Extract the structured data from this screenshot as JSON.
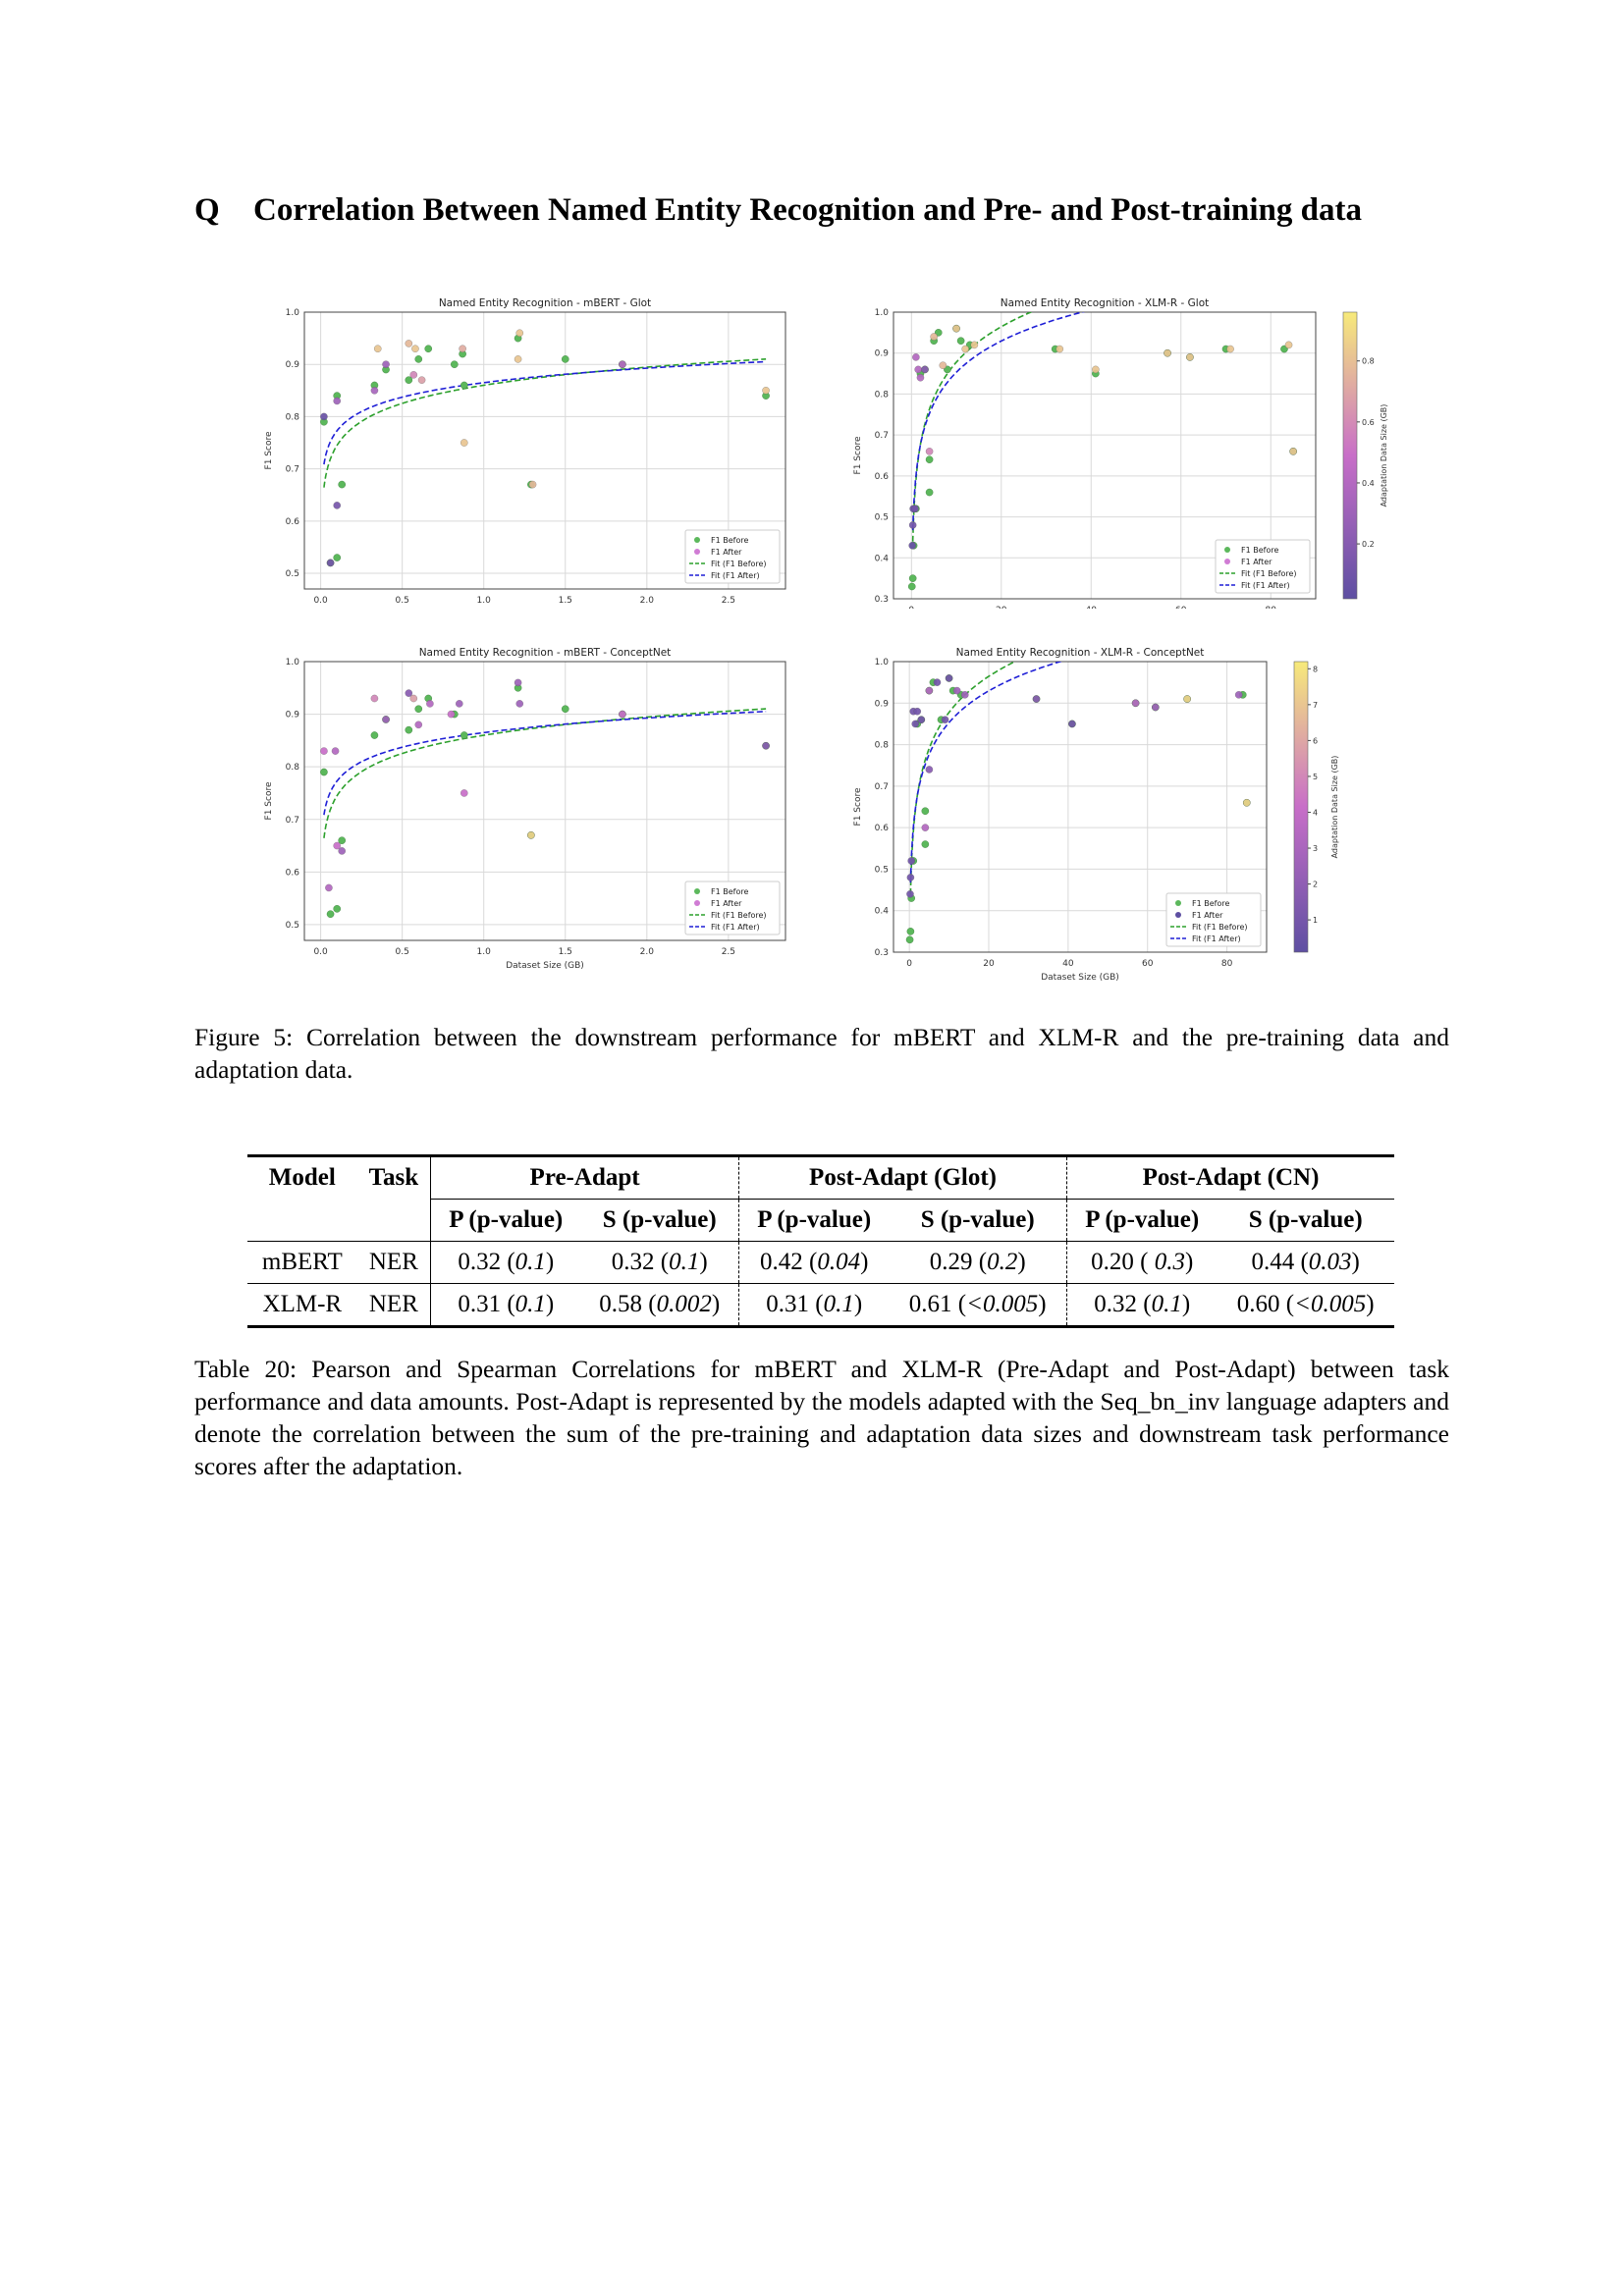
{
  "section": {
    "number": "Q",
    "title": "Correlation Between Named Entity Recognition and Pre- and Post-training data"
  },
  "figure_caption": "Figure 5: Correlation between the downstream performance for mBERT and XLM-R and the pre-training data and adaptation data.",
  "colors": {
    "before": "#5cb85c",
    "after_low": "#5e4fa2",
    "after_high": "#f7ea7a",
    "fit_before": "#2ca02c",
    "fit_after": "#1f1fd6"
  },
  "legend": [
    "F1 Before",
    "F1 After",
    "Fit (F1 Before)",
    "Fit (F1 After)"
  ],
  "chart_data": [
    {
      "type": "scatter",
      "title": "Named Entity Recognition - mBERT - Glot",
      "xlabel": "Dataset Size (GB)",
      "ylabel": "F1 Score",
      "xlim": [
        -0.1,
        2.85
      ],
      "ylim": [
        0.47,
        1.0
      ],
      "xticks": [
        0.0,
        0.5,
        1.0,
        1.5,
        2.0,
        2.5
      ],
      "yticks": [
        0.5,
        0.6,
        0.7,
        0.8,
        0.9,
        1.0
      ],
      "grid": true,
      "legend_position": "lower-right",
      "fit": {
        "before": [
          0.86,
          0.05
        ],
        "after": [
          0.865,
          0.04
        ]
      },
      "before": [
        [
          0.02,
          0.79
        ],
        [
          0.06,
          0.52
        ],
        [
          0.1,
          0.53
        ],
        [
          0.1,
          0.84
        ],
        [
          0.13,
          0.67
        ],
        [
          0.33,
          0.86
        ],
        [
          0.4,
          0.89
        ],
        [
          0.54,
          0.87
        ],
        [
          0.6,
          0.91
        ],
        [
          0.66,
          0.93
        ],
        [
          0.82,
          0.9
        ],
        [
          0.87,
          0.92
        ],
        [
          0.88,
          0.86
        ],
        [
          1.21,
          0.95
        ],
        [
          1.29,
          0.67
        ],
        [
          1.5,
          0.91
        ],
        [
          1.85,
          0.9
        ],
        [
          2.73,
          0.84
        ]
      ],
      "after": [
        [
          0.02,
          0.8,
          0.05
        ],
        [
          0.06,
          0.52,
          0.1
        ],
        [
          0.1,
          0.63,
          0.12
        ],
        [
          0.1,
          0.83,
          0.3
        ],
        [
          0.33,
          0.85,
          0.35
        ],
        [
          0.35,
          0.93,
          0.85
        ],
        [
          0.4,
          0.9,
          0.3
        ],
        [
          0.54,
          0.94,
          0.8
        ],
        [
          0.57,
          0.88,
          0.6
        ],
        [
          0.58,
          0.93,
          0.85
        ],
        [
          0.62,
          0.87,
          0.7
        ],
        [
          0.87,
          0.93,
          0.75
        ],
        [
          0.88,
          0.75,
          0.85
        ],
        [
          1.21,
          0.91,
          0.85
        ],
        [
          1.22,
          0.96,
          0.85
        ],
        [
          1.3,
          0.67,
          0.8
        ],
        [
          1.85,
          0.9,
          0.4
        ],
        [
          2.73,
          0.85,
          0.85
        ]
      ],
      "colorbar": null
    },
    {
      "type": "scatter",
      "title": "Named Entity Recognition - XLM-R - Glot",
      "xlabel": "Dataset Size (GB)",
      "ylabel": "F1 Score",
      "xlim": [
        -4,
        90
      ],
      "ylim": [
        0.3,
        1.0
      ],
      "xticks": [
        0,
        20,
        40,
        60,
        80
      ],
      "yticks": [
        0.3,
        0.4,
        0.5,
        0.6,
        0.7,
        0.8,
        0.9,
        1.0
      ],
      "grid": true,
      "legend_position": "lower-right",
      "fit": {
        "before": [
          0.59,
          0.125
        ],
        "after": [
          0.6,
          0.11
        ]
      },
      "before": [
        [
          0.1,
          0.33
        ],
        [
          0.3,
          0.35
        ],
        [
          0.5,
          0.43
        ],
        [
          1,
          0.52
        ],
        [
          2,
          0.85
        ],
        [
          3,
          0.86
        ],
        [
          4,
          0.56
        ],
        [
          4,
          0.64
        ],
        [
          5,
          0.93
        ],
        [
          6,
          0.95
        ],
        [
          8,
          0.86
        ],
        [
          10,
          0.96
        ],
        [
          11,
          0.93
        ],
        [
          13,
          0.92
        ],
        [
          32,
          0.91
        ],
        [
          41,
          0.85
        ],
        [
          57,
          0.9
        ],
        [
          62,
          0.89
        ],
        [
          70,
          0.91
        ],
        [
          83,
          0.91
        ],
        [
          85,
          0.66
        ]
      ],
      "after": [
        [
          0.2,
          0.43,
          0.05
        ],
        [
          0.3,
          0.48,
          0.1
        ],
        [
          0.4,
          0.52,
          0.05
        ],
        [
          0.8,
          0.52,
          0.1
        ],
        [
          1,
          0.89,
          0.4
        ],
        [
          1.5,
          0.86,
          0.4
        ],
        [
          2,
          0.84,
          0.4
        ],
        [
          3,
          0.86,
          0.2
        ],
        [
          4,
          0.66,
          0.6
        ],
        [
          5,
          0.94,
          0.8
        ],
        [
          7,
          0.87,
          0.8
        ],
        [
          10,
          0.96,
          0.85
        ],
        [
          12,
          0.91,
          0.85
        ],
        [
          14,
          0.92,
          0.85
        ],
        [
          33,
          0.91,
          0.85
        ],
        [
          41,
          0.86,
          0.85
        ],
        [
          57,
          0.9,
          0.85
        ],
        [
          62,
          0.89,
          0.85
        ],
        [
          71,
          0.91,
          0.85
        ],
        [
          84,
          0.92,
          0.85
        ],
        [
          85,
          0.66,
          0.85
        ]
      ],
      "colorbar": {
        "label": "Adaptation Data Size (GB)",
        "ticks": [
          0.2,
          0.4,
          0.6,
          0.8
        ],
        "range": [
          0.02,
          0.96
        ]
      }
    },
    {
      "type": "scatter",
      "title": "Named Entity Recognition - mBERT - ConceptNet",
      "xlabel": "Dataset Size (GB)",
      "ylabel": "F1 Score",
      "xlim": [
        -0.1,
        2.85
      ],
      "ylim": [
        0.47,
        1.0
      ],
      "xticks": [
        0.0,
        0.5,
        1.0,
        1.5,
        2.0,
        2.5
      ],
      "yticks": [
        0.5,
        0.6,
        0.7,
        0.8,
        0.9,
        1.0
      ],
      "grid": true,
      "legend_position": "lower-right",
      "fit": {
        "before": [
          0.86,
          0.05
        ],
        "after": [
          0.865,
          0.04
        ]
      },
      "before": [
        [
          0.02,
          0.79
        ],
        [
          0.06,
          0.52
        ],
        [
          0.1,
          0.53
        ],
        [
          0.13,
          0.66
        ],
        [
          0.33,
          0.86
        ],
        [
          0.4,
          0.89
        ],
        [
          0.54,
          0.87
        ],
        [
          0.6,
          0.91
        ],
        [
          0.66,
          0.93
        ],
        [
          0.82,
          0.9
        ],
        [
          0.88,
          0.86
        ],
        [
          1.21,
          0.95
        ],
        [
          1.29,
          0.67
        ],
        [
          1.5,
          0.91
        ],
        [
          1.85,
          0.9
        ],
        [
          2.73,
          0.84
        ]
      ],
      "after": [
        [
          0.02,
          0.83,
          0.5
        ],
        [
          0.05,
          0.57,
          0.4
        ],
        [
          0.09,
          0.83,
          0.4
        ],
        [
          0.1,
          0.65,
          0.5
        ],
        [
          0.13,
          0.64,
          0.3
        ],
        [
          0.33,
          0.93,
          0.6
        ],
        [
          0.4,
          0.89,
          0.3
        ],
        [
          0.54,
          0.94,
          0.2
        ],
        [
          0.57,
          0.93,
          0.7
        ],
        [
          0.6,
          0.88,
          0.4
        ],
        [
          0.67,
          0.92,
          0.4
        ],
        [
          0.8,
          0.9,
          0.5
        ],
        [
          0.85,
          0.92,
          0.3
        ],
        [
          0.88,
          0.75,
          0.5
        ],
        [
          1.21,
          0.96,
          0.3
        ],
        [
          1.22,
          0.92,
          0.3
        ],
        [
          1.29,
          0.67,
          0.9
        ],
        [
          1.85,
          0.9,
          0.5
        ],
        [
          2.73,
          0.84,
          0.2
        ]
      ],
      "colorbar": null
    },
    {
      "type": "scatter",
      "title": "Named Entity Recognition - XLM-R - ConceptNet",
      "xlabel": "Dataset Size (GB)",
      "ylabel": "F1 Score",
      "xlim": [
        -4,
        90
      ],
      "ylim": [
        0.3,
        1.0
      ],
      "xticks": [
        0,
        20,
        40,
        60,
        80
      ],
      "yticks": [
        0.3,
        0.4,
        0.5,
        0.6,
        0.7,
        0.8,
        0.9,
        1.0
      ],
      "grid": true,
      "legend_position": "lower-right",
      "fit": {
        "before": [
          0.59,
          0.125
        ],
        "after": [
          0.6,
          0.11
        ]
      },
      "before": [
        [
          0.1,
          0.33
        ],
        [
          0.3,
          0.35
        ],
        [
          0.5,
          0.43
        ],
        [
          1,
          0.52
        ],
        [
          2,
          0.85
        ],
        [
          3,
          0.86
        ],
        [
          4,
          0.56
        ],
        [
          4,
          0.64
        ],
        [
          5,
          0.93
        ],
        [
          6,
          0.95
        ],
        [
          8,
          0.86
        ],
        [
          10,
          0.96
        ],
        [
          11,
          0.93
        ],
        [
          13,
          0.92
        ],
        [
          32,
          0.91
        ],
        [
          41,
          0.85
        ],
        [
          57,
          0.9
        ],
        [
          62,
          0.89
        ],
        [
          70,
          0.91
        ],
        [
          84,
          0.92
        ],
        [
          85,
          0.66
        ]
      ],
      "after": [
        [
          0.2,
          0.44,
          0.1
        ],
        [
          0.3,
          0.48,
          0.1
        ],
        [
          0.5,
          0.52,
          0.1
        ],
        [
          1,
          0.88,
          0.1
        ],
        [
          1.5,
          0.85,
          0.1
        ],
        [
          2,
          0.88,
          0.1
        ],
        [
          3,
          0.86,
          0.1
        ],
        [
          4,
          0.6,
          0.4
        ],
        [
          5,
          0.93,
          0.4
        ],
        [
          5,
          0.74,
          0.2
        ],
        [
          7,
          0.95,
          0.1
        ],
        [
          9,
          0.86,
          0.1
        ],
        [
          10,
          0.96,
          0.1
        ],
        [
          12,
          0.93,
          0.3
        ],
        [
          14,
          0.92,
          0.3
        ],
        [
          32,
          0.91,
          0.2
        ],
        [
          41,
          0.85,
          0.1
        ],
        [
          57,
          0.9,
          0.4
        ],
        [
          62,
          0.89,
          0.3
        ],
        [
          70,
          0.91,
          0.9
        ],
        [
          83,
          0.92,
          0.3
        ],
        [
          85,
          0.66,
          0.9
        ]
      ],
      "colorbar": {
        "label": "Adaptation Data Size (GB)",
        "ticks": [
          1,
          2,
          3,
          4,
          5,
          6,
          7,
          8
        ],
        "range": [
          0.1,
          8.2
        ]
      }
    }
  ],
  "table": {
    "headers": {
      "model": "Model",
      "task": "Task",
      "pre": "Pre-Adapt",
      "glot": "Post-Adapt (Glot)",
      "cn": "Post-Adapt (CN)",
      "p": "P (p-value)",
      "s": "S (p-value)"
    },
    "rows": [
      {
        "model": "mBERT",
        "task": "NER",
        "cells": [
          [
            "0.32",
            "0.1"
          ],
          [
            "0.32",
            "0.1"
          ],
          [
            "0.42",
            "0.04"
          ],
          [
            "0.29",
            "0.2"
          ],
          [
            "0.20",
            " 0.3"
          ],
          [
            "0.44",
            "0.03"
          ]
        ]
      },
      {
        "model": "XLM-R",
        "task": "NER",
        "cells": [
          [
            "0.31",
            "0.1"
          ],
          [
            "0.58",
            "0.002"
          ],
          [
            "0.31",
            "0.1"
          ],
          [
            "0.61",
            "<0.005"
          ],
          [
            "0.32",
            "0.1"
          ],
          [
            "0.60",
            "<0.005"
          ]
        ]
      }
    ]
  },
  "table_caption": "Table 20: Pearson and Spearman Correlations for mBERT and XLM-R (Pre-Adapt and Post-Adapt) between task performance and data amounts. Post-Adapt is represented by the models adapted with the Seq_bn_inv language adapters and denote the correlation between the sum of the pre-training and adaptation data sizes and downstream task performance scores after the adaptation."
}
